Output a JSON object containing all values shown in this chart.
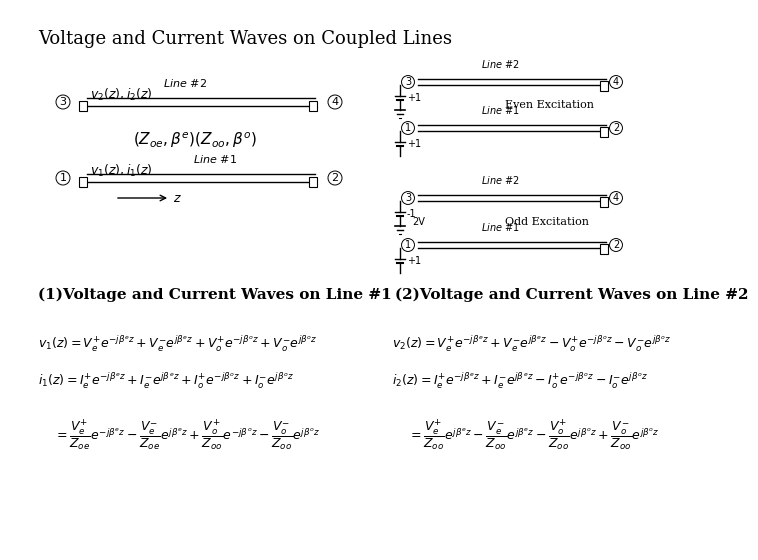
{
  "title": "Voltage and Current Waves on Coupled Lines",
  "bg_color": "#ffffff",
  "left_label": "(1)Voltage and Current Waves on Line #1",
  "right_label": "(2)Voltage and Current Waves on Line #2",
  "right_even_label": "Even Excitation",
  "right_odd_label": "Odd Excitation",
  "font_title": 13,
  "font_sub": 11,
  "font_eq": 9
}
